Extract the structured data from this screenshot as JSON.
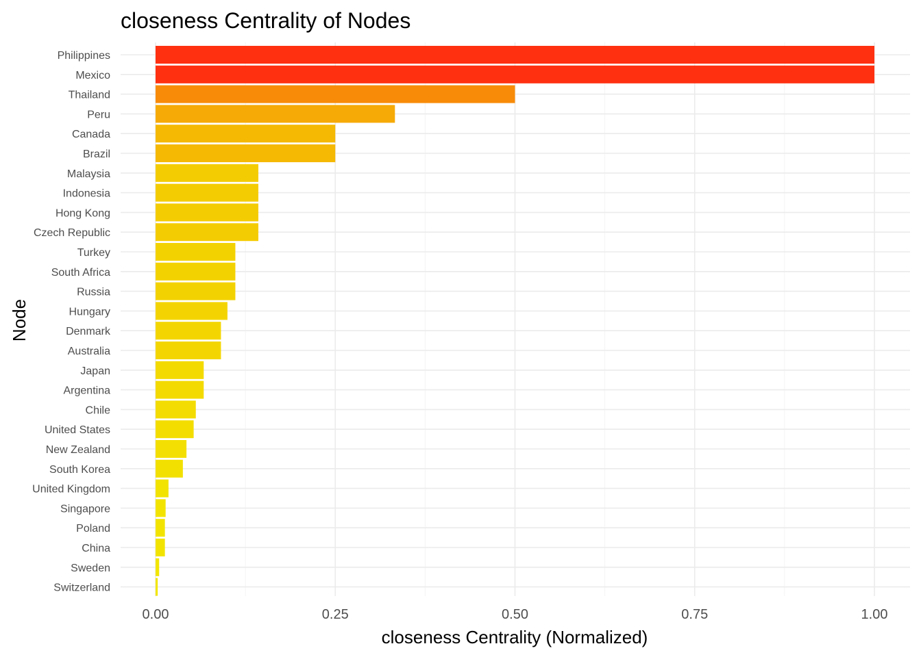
{
  "chart_data": {
    "type": "bar",
    "orientation": "horizontal",
    "title": "closeness Centrality of Nodes",
    "xlabel": "closeness Centrality (Normalized)",
    "ylabel": "Node",
    "xlim": [
      0,
      1
    ],
    "x_ticks": [
      "0.00",
      "0.25",
      "0.50",
      "0.75",
      "1.00"
    ],
    "grid": true,
    "legend": "none",
    "color_scale": {
      "low": "#f2e600",
      "high": "#ff3010"
    },
    "categories": [
      "Philippines",
      "Mexico",
      "Thailand",
      "Peru",
      "Canada",
      "Brazil",
      "Malaysia",
      "Indonesia",
      "Hong Kong",
      "Czech Republic",
      "Turkey",
      "South Africa",
      "Russia",
      "Hungary",
      "Denmark",
      "Australia",
      "Japan",
      "Argentina",
      "Chile",
      "United States",
      "New Zealand",
      "South Korea",
      "United Kingdom",
      "Singapore",
      "Poland",
      "China",
      "Sweden",
      "Switzerland"
    ],
    "values": [
      1.0,
      1.0,
      0.5,
      0.333,
      0.25,
      0.25,
      0.143,
      0.143,
      0.143,
      0.143,
      0.111,
      0.111,
      0.111,
      0.1,
      0.091,
      0.091,
      0.067,
      0.067,
      0.056,
      0.053,
      0.043,
      0.038,
      0.018,
      0.014,
      0.013,
      0.013,
      0.005,
      0.003
    ]
  }
}
